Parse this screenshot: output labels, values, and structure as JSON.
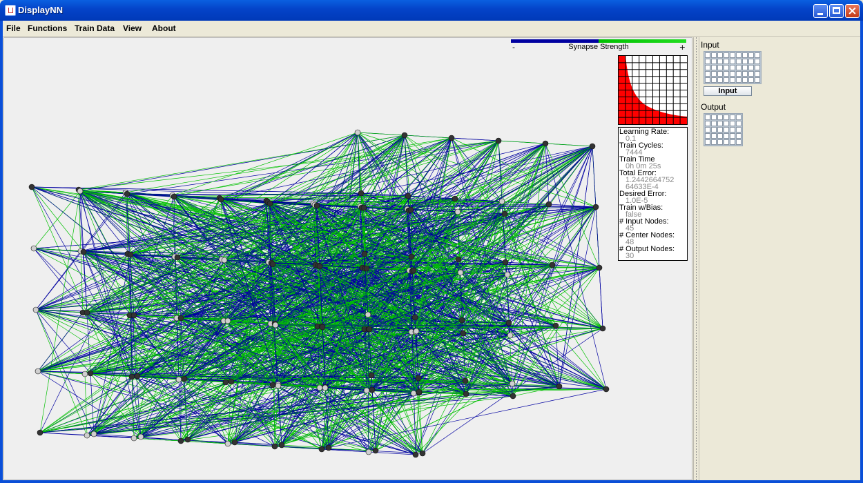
{
  "window": {
    "title": "DisplayNN"
  },
  "menu": [
    "File",
    "Functions",
    "Train Data",
    "View",
    "About"
  ],
  "legend": {
    "caption": "Synapse Strength",
    "min_symbol": "-",
    "max_symbol": "+",
    "negative_color": "#0000a0",
    "positive_color": "#00c000"
  },
  "stats": [
    {
      "label": "Learning Rate:",
      "value": "0.1"
    },
    {
      "label": "Train Cycles:",
      "value": "7444"
    },
    {
      "label": "Train Time",
      "value": "0h 0m 25s"
    },
    {
      "label": "Total Error:",
      "value": "1.2442664752",
      "value2": "64633E-4"
    },
    {
      "label": "Desired Error:",
      "value": "1.0E-5"
    },
    {
      "label": "Train w/Bias:",
      "value": "false"
    },
    {
      "label": "# Input Nodes:",
      "value": "45"
    },
    {
      "label": "# Center Nodes:",
      "value": "48"
    },
    {
      "label": "# Output Nodes:",
      "value": "30"
    }
  ],
  "side": {
    "input_label": "Input",
    "input_button": "Input",
    "output_label": "Output",
    "input_grid": {
      "rows": 5,
      "cols": 9
    },
    "output_grid": {
      "rows": 5,
      "cols": 6
    }
  },
  "colors": {
    "error_fill": "#ff0000",
    "titlebar": "#0443c8"
  }
}
